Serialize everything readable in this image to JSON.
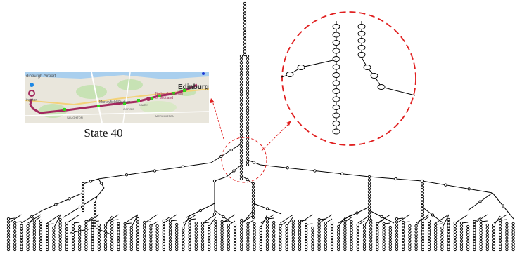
{
  "figure": {
    "caption": "State 40"
  },
  "map": {
    "labels": {
      "airport": "dinburgh Airport",
      "ingston": "ingston",
      "edinburgh": "Edinburgh",
      "museum": "National Museum of Scotland",
      "gorgie": "GORGIE",
      "merchiston": "MERCHISTON",
      "saughton": "SAUGHTON",
      "dalry": "DALRY",
      "stadium": "Murrayfield Stadium",
      "colors": {
        "route": "#a3285e",
        "stops": "#33d61a",
        "water": "#a9cfee",
        "greenspace": "#c7e2b4"
      }
    }
  },
  "tree": {
    "edge_color": "#000000",
    "highlight_color": "#e02020"
  },
  "zoom": {
    "style": "dashed-circle"
  }
}
